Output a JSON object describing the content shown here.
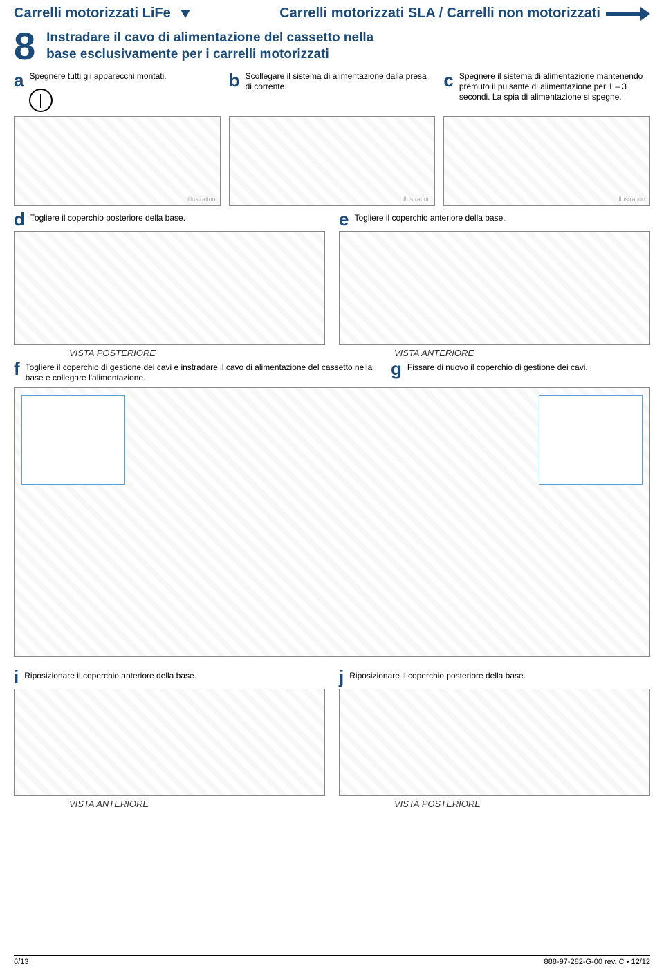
{
  "header": {
    "left": "Carrelli motorizzati LiFe",
    "right": "Carrelli motorizzati SLA / Carrelli non motorizzati"
  },
  "step8": {
    "number": "8",
    "title": "Instradare il cavo di alimentazione del cassetto nella base esclusivamente per i carrelli motorizzati"
  },
  "substeps_abc": {
    "a": {
      "letter": "a",
      "text": "Spegnere tutti gli apparecchi montati."
    },
    "b": {
      "letter": "b",
      "text": "Scollegare il sistema di alimentazione dalla presa di corrente."
    },
    "c": {
      "letter": "c",
      "text": "Spegnere il sistema di alimentazione mantenendo premuto il pulsante di alimentazione per 1 – 3 secondi. La spia di alimentazione si spegne."
    }
  },
  "substeps_de": {
    "d": {
      "letter": "d",
      "text": "Togliere il coperchio posteriore della base.",
      "view": "VISTA POSTERIORE"
    },
    "e": {
      "letter": "e",
      "text": "Togliere il coperchio anteriore della base.",
      "view": "VISTA ANTERIORE"
    }
  },
  "substeps_fg": {
    "f": {
      "letter": "f",
      "text": "Togliere il coperchio di gestione dei cavi e instradare il cavo di alimentazione del cassetto nella base e collegare l'alimentazione."
    },
    "g": {
      "letter": "g",
      "text": "Fissare di nuovo il coperchio di gestione dei cavi."
    }
  },
  "substeps_ij": {
    "i": {
      "letter": "i",
      "text": "Riposizionare il coperchio anteriore della base.",
      "view": "VISTA ANTERIORE"
    },
    "j": {
      "letter": "j",
      "text": "Riposizionare il coperchio posteriore della base.",
      "view": "VISTA POSTERIORE"
    }
  },
  "footer": {
    "page": "6/13",
    "docref": "888-97-282-G-00 rev. C • 12/12"
  },
  "colors": {
    "accent": "#1a4a7a",
    "inset_border": "#5aa0d8"
  }
}
